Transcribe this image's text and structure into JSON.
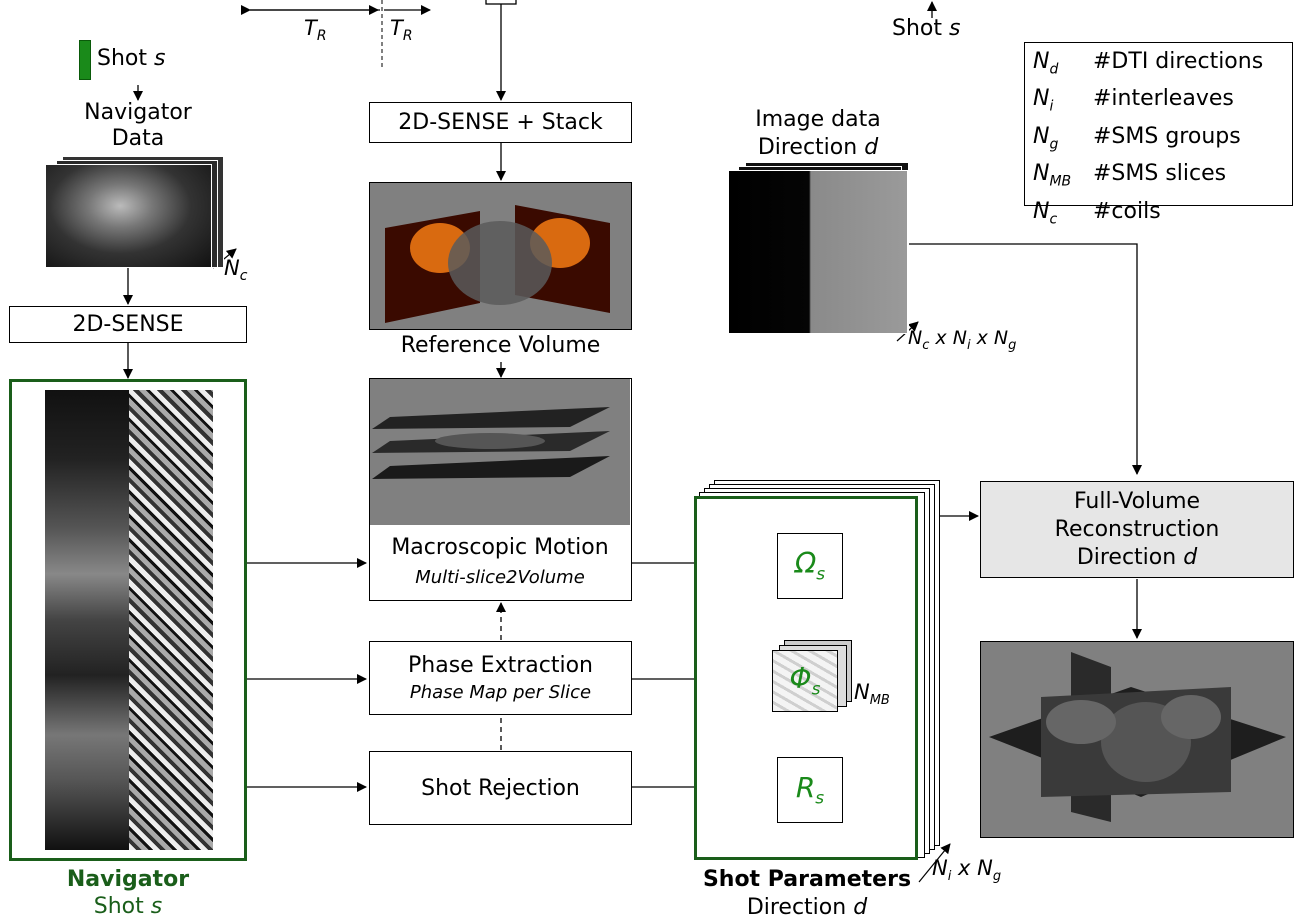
{
  "timing": {
    "tr": "T",
    "tr_sub": "R"
  },
  "top_shot": {
    "label": "Shot ",
    "var": "s"
  },
  "legend": {
    "items": [
      {
        "sym": "N",
        "sub": "d",
        "text": "#DTI directions"
      },
      {
        "sym": "N",
        "sub": "i",
        "text": "#interleaves"
      },
      {
        "sym": "N",
        "sub": "g",
        "text": "#SMS groups"
      },
      {
        "sym": "N",
        "sub": "MB",
        "text": "#SMS slices"
      },
      {
        "sym": "N",
        "sub": "c",
        "text": "#coils"
      }
    ]
  },
  "navigator_shot": {
    "label": "Shot ",
    "var": "s"
  },
  "navigator_data": {
    "line1": "Navigator",
    "line2": "Data",
    "dim": "N",
    "dim_sub": "c"
  },
  "sense_left": "2D-SENSE",
  "sense_stack": "2D-SENSE + Stack",
  "reference_volume": "Reference Volume",
  "image_data": {
    "line1": "Image data",
    "line2": "Direction ",
    "var": "d",
    "dims": [
      "N",
      "c",
      "x",
      "N",
      "i",
      "x",
      "N",
      "g"
    ]
  },
  "macro_motion": {
    "title": "Macroscopic Motion",
    "subtitle": "Multi-slice2Volume"
  },
  "phase_extraction": {
    "title": "Phase Extraction",
    "subtitle": "Phase Map per Slice"
  },
  "shot_rejection": {
    "title": "Shot Rejection"
  },
  "params": {
    "omega": "Ω",
    "phi": "Φ",
    "r": "R",
    "sub": "s",
    "phi_dim": "N",
    "phi_dim_sub": "MB",
    "stack_dims": [
      "N",
      "i",
      "x",
      "N",
      "g"
    ]
  },
  "full_recon": {
    "line1": "Full-Volume",
    "line2": "Reconstruction",
    "line3": "Direction ",
    "var": "d"
  },
  "navigator_caption": {
    "title": "Navigator",
    "line2": "Shot ",
    "var": "s"
  },
  "shot_params_caption": {
    "title": "Shot Parameters",
    "line2": "Direction ",
    "var": "d"
  },
  "colors": {
    "green": "#1a8a1a",
    "dark_green": "#1a5e1a",
    "box_gray": "#e6e6e6",
    "panel_gray": "#808080"
  }
}
